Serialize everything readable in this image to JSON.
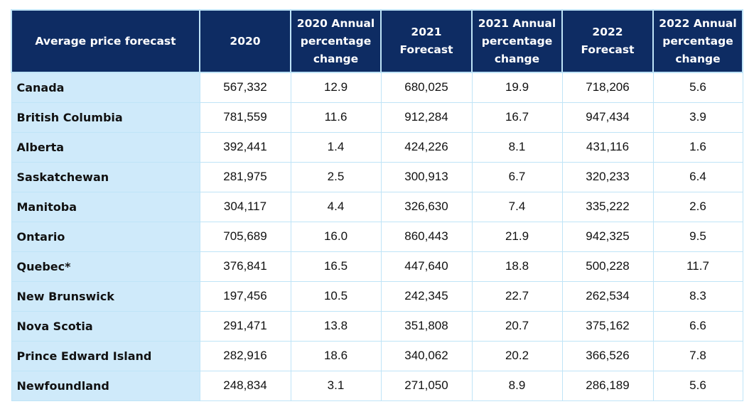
{
  "chart_data": {
    "type": "table",
    "columns": [
      "Average price forecast",
      "2020",
      "2020 Annual percentage change",
      "2021 Forecast",
      "2021 Annual percentage change",
      "2022 Forecast",
      "2022 Annual percentage change"
    ],
    "rows": [
      [
        "Canada",
        "567,332",
        "12.9",
        "680,025",
        "19.9",
        "718,206",
        "5.6"
      ],
      [
        "British Columbia",
        "781,559",
        "11.6",
        "912,284",
        "16.7",
        "947,434",
        "3.9"
      ],
      [
        "Alberta",
        "392,441",
        "1.4",
        "424,226",
        "8.1",
        "431,116",
        "1.6"
      ],
      [
        "Saskatchewan",
        "281,975",
        "2.5",
        "300,913",
        "6.7",
        "320,233",
        "6.4"
      ],
      [
        "Manitoba",
        "304,117",
        "4.4",
        "326,630",
        "7.4",
        "335,222",
        "2.6"
      ],
      [
        "Ontario",
        "705,689",
        "16.0",
        "860,443",
        "21.9",
        "942,325",
        "9.5"
      ],
      [
        "Quebec*",
        "376,841",
        "16.5",
        "447,640",
        "18.8",
        "500,228",
        "11.7"
      ],
      [
        "New Brunswick",
        "197,456",
        "10.5",
        "242,345",
        "22.7",
        "262,534",
        "8.3"
      ],
      [
        "Nova Scotia",
        "291,471",
        "13.8",
        "351,808",
        "20.7",
        "375,162",
        "6.6"
      ],
      [
        "Prince Edward Island",
        "282,916",
        "18.6",
        "340,062",
        "20.2",
        "366,526",
        "7.8"
      ],
      [
        "Newfoundland",
        "248,834",
        "3.1",
        "271,050",
        "8.9",
        "286,189",
        "5.6"
      ]
    ]
  },
  "colors": {
    "header_bg": "#0e2c63",
    "header_text": "#ffffff",
    "label_bg": "#cfeafa",
    "grid": "#bfe4f7"
  }
}
